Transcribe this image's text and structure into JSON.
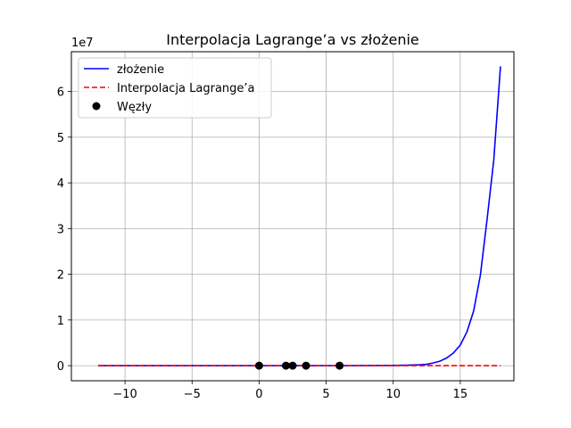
{
  "chart_data": {
    "type": "line",
    "title": "Interpolacja Lagrange’a vs złożenie",
    "xlabel": "",
    "ylabel": "",
    "y_offset_label": "1e7",
    "xlim": [
      -14,
      19
    ],
    "ylim": [
      -3300000,
      68700000
    ],
    "x_ticks": [
      -10,
      -5,
      0,
      5,
      10,
      15
    ],
    "x_tick_labels": [
      "−10",
      "−5",
      "0",
      "5",
      "10",
      "15"
    ],
    "y_ticks": [
      0,
      10000000,
      20000000,
      30000000,
      40000000,
      50000000,
      60000000
    ],
    "y_tick_labels": [
      "0",
      "1",
      "2",
      "3",
      "4",
      "5",
      "6"
    ],
    "grid": true,
    "legend_position": "top-left",
    "series": [
      {
        "name": "złożenie",
        "style": "solid",
        "color": "#0000ff",
        "x": [
          -12,
          -10,
          -5,
          0,
          5,
          10,
          11,
          12,
          12.5,
          13,
          13.5,
          14,
          14.5,
          15,
          15.5,
          16,
          16.5,
          17,
          17.5,
          18
        ],
        "y": [
          0,
          0,
          0,
          0,
          0,
          50000,
          100000,
          200000,
          300000,
          600000,
          1000000,
          1700000,
          2800000,
          4500000,
          7400000,
          12000000,
          19800000,
          32000000,
          45000000,
          65500000
        ]
      },
      {
        "name": "Interpolacja Lagrange’a",
        "style": "dashed",
        "color": "#ff0000",
        "x": [
          -12,
          -6,
          0,
          6,
          12,
          18
        ],
        "y": [
          0,
          0,
          0,
          0,
          0,
          0
        ]
      },
      {
        "name": "Węzły",
        "style": "markers",
        "color": "#000000",
        "x": [
          0,
          2,
          2.5,
          3.5,
          6
        ],
        "y": [
          0,
          0,
          0,
          0,
          0
        ]
      }
    ]
  }
}
